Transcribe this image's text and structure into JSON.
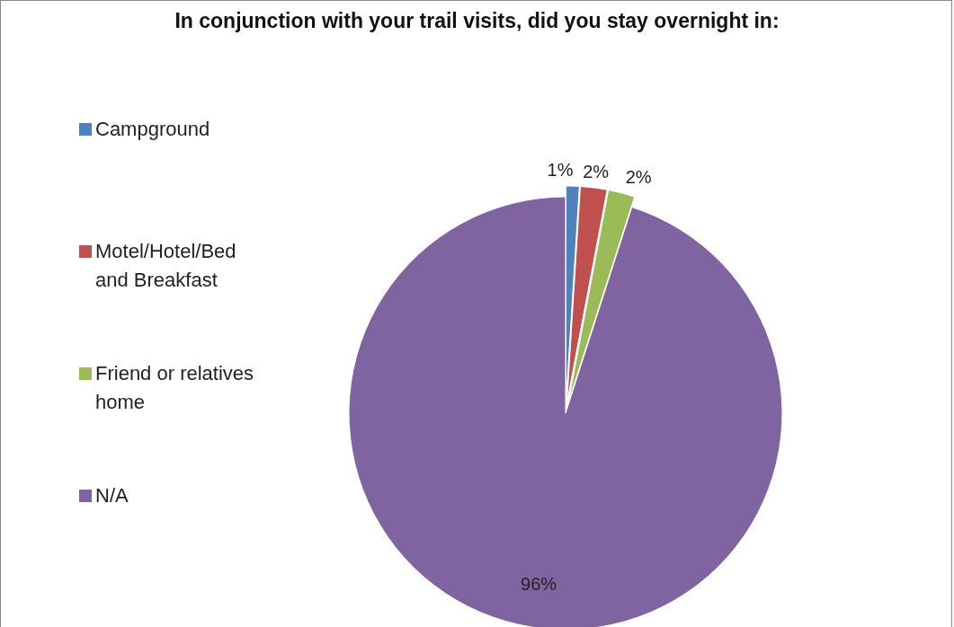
{
  "chart_data": {
    "type": "pie",
    "title": "In conjunction with your trail visits, did you stay overnight in:",
    "categories": [
      "Campground",
      "Motel/Hotel/Bed and Breakfast",
      "Friend or relatives home",
      "N/A"
    ],
    "values": [
      1,
      2,
      2,
      96
    ],
    "colors": [
      "#4f81bd",
      "#c0504d",
      "#9bbb59",
      "#8064a2"
    ],
    "value_labels": [
      "1%",
      "2%",
      "2%",
      "96%"
    ],
    "legend": "left"
  }
}
